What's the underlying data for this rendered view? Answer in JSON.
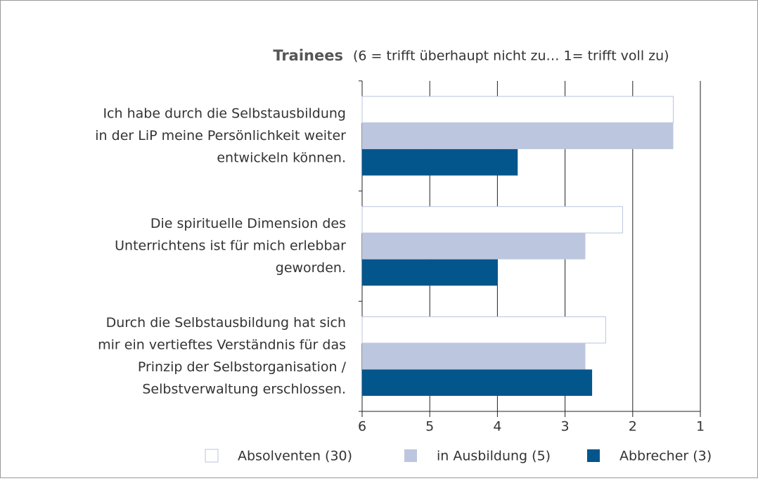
{
  "chart_data": {
    "type": "hbar",
    "title": "Trainees",
    "subtitle": "(6 = trifft überhaupt nicht zu… 1= trifft voll zu)",
    "categories": [
      [
        "Ich habe durch die Selbstausbildung",
        "in der LiP meine Persönlichkeit weiter",
        "entwickeln können."
      ],
      [
        "Die spirituelle Dimension des",
        "Unterrichtens ist für mich erlebbar",
        "geworden."
      ],
      [
        "Durch die Selbstausbildung hat sich",
        "mir ein vertieftes Verständnis für das",
        "Prinzip der Selbstorganisation /",
        "Selbstverwaltung erschlossen."
      ]
    ],
    "series": [
      {
        "name": "Absolventen (30)",
        "color": "#ffffff",
        "values": [
          1.4,
          2.15,
          2.4
        ]
      },
      {
        "name": "in Ausbildung (5)",
        "color": "#bcc6de",
        "values": [
          1.4,
          2.7,
          2.7
        ]
      },
      {
        "name": "Abbrecher (3)",
        "color": "#03568c",
        "values": [
          3.7,
          4.0,
          2.6
        ]
      }
    ],
    "xlim": [
      6,
      1
    ],
    "xticks": [
      6,
      5,
      4,
      3,
      2,
      1
    ],
    "grid": true,
    "legend": "bottom"
  }
}
